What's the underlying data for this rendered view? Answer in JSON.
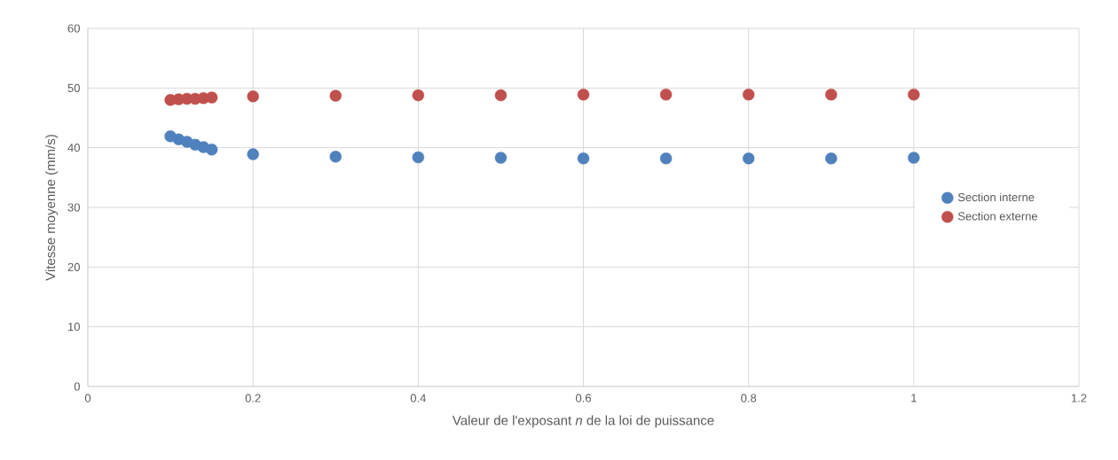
{
  "chart_data": {
    "type": "scatter",
    "xlabel": "Valeur de l'exposant *n* de la loi de puissance",
    "ylabel": "Vitesse moyenne (mm/s)",
    "x": [
      0.1,
      0.11,
      0.12,
      0.13,
      0.14,
      0.15,
      0.2,
      0.3,
      0.4,
      0.5,
      0.6,
      0.7,
      0.8,
      0.9,
      1.0
    ],
    "series": [
      {
        "name": "Section interne",
        "color": "#4f81bd",
        "values": [
          41.9,
          41.4,
          41.0,
          40.5,
          40.1,
          39.7,
          38.9,
          38.5,
          38.4,
          38.3,
          38.2,
          38.2,
          38.2,
          38.2,
          38.3
        ]
      },
      {
        "name": "Section externe",
        "color": "#c0504d",
        "values": [
          48.0,
          48.1,
          48.2,
          48.2,
          48.3,
          48.4,
          48.6,
          48.7,
          48.8,
          48.8,
          48.9,
          48.9,
          48.9,
          48.9,
          48.9
        ]
      }
    ],
    "xlim": [
      0,
      1.2
    ],
    "xticks": [
      0,
      0.2,
      0.4,
      0.6,
      0.8,
      1,
      1.2
    ],
    "ylim": [
      0,
      60
    ],
    "yticks": [
      0,
      10,
      20,
      30,
      40,
      50,
      60
    ],
    "grid": true,
    "legend": "right"
  }
}
